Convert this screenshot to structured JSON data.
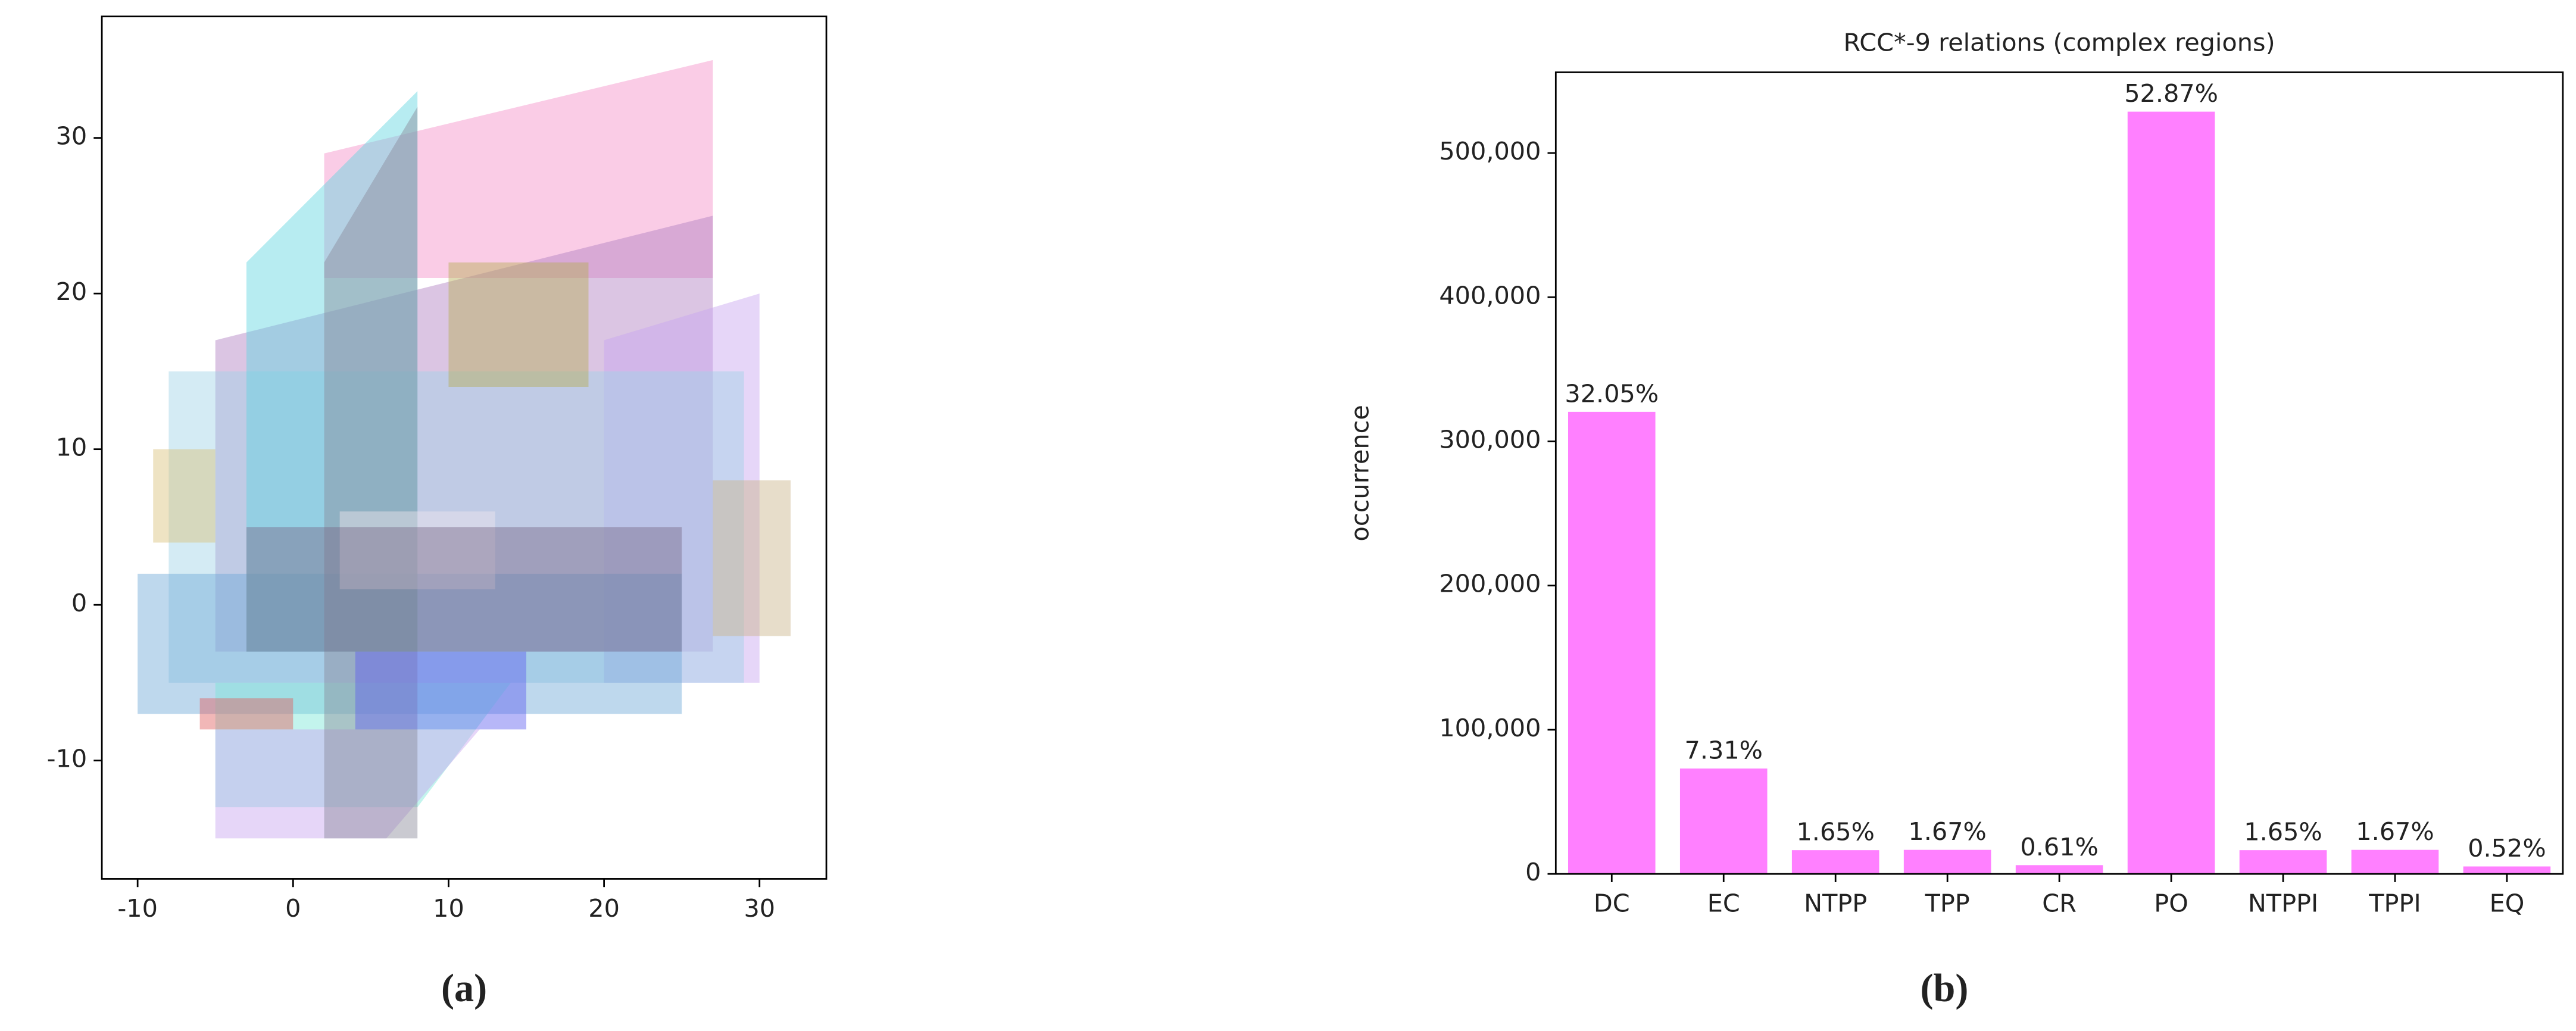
{
  "chart_data": [
    {
      "type": "polygon",
      "caption": "(a)",
      "xlim": [
        -12.3,
        34.3
      ],
      "ylim": [
        -17.6,
        37.8
      ],
      "xticks": [
        -10,
        0,
        10,
        20,
        30
      ],
      "yticks": [
        -10,
        0,
        10,
        20,
        30
      ],
      "polygons": [
        {
          "color": "#f48fc8",
          "x": [
            2,
            27,
            27,
            2
          ],
          "y": [
            29,
            35,
            21,
            21
          ]
        },
        {
          "color": "#b07fc0",
          "x": [
            -5,
            27,
            27,
            -5
          ],
          "y": [
            17,
            25,
            -3,
            -3
          ]
        },
        {
          "color": "#c7a5f0",
          "x": [
            20,
            30,
            30,
            20
          ],
          "y": [
            17,
            20,
            -5,
            -5
          ]
        },
        {
          "color": "#9fd3e6",
          "x": [
            -8,
            29,
            29,
            -8
          ],
          "y": [
            15,
            15,
            -5,
            -5
          ]
        },
        {
          "color": "#6fa8d8",
          "x": [
            -10,
            25,
            25,
            -10
          ],
          "y": [
            2,
            2,
            -7,
            -7
          ]
        },
        {
          "color": "#d9c27a",
          "x": [
            -9,
            -5,
            -5,
            -9
          ],
          "y": [
            10,
            10,
            4,
            4
          ]
        },
        {
          "color": "#c9b48a",
          "x": [
            27,
            32,
            32,
            27
          ],
          "y": [
            8,
            8,
            -2,
            -2
          ]
        },
        {
          "color": "#79e6d8",
          "x": [
            -5,
            14,
            8,
            -5
          ],
          "y": [
            -5,
            -5,
            -13,
            -13
          ]
        },
        {
          "color": "#c7a5f0",
          "x": [
            -5,
            12,
            6,
            -5
          ],
          "y": [
            -8,
            -8,
            -15,
            -15
          ]
        },
        {
          "color": "#5fd5e0",
          "x": [
            -3,
            8,
            8,
            -3
          ],
          "y": [
            22,
            33,
            -3,
            -3
          ]
        },
        {
          "color": "#8a8a9a",
          "x": [
            2,
            8,
            8,
            2
          ],
          "y": [
            22,
            32,
            -15,
            -15
          ]
        },
        {
          "color": "#f0e6ee",
          "x": [
            3,
            13,
            13,
            3
          ],
          "y": [
            6,
            6,
            1,
            1
          ]
        },
        {
          "color": "#7a6a8a",
          "x": [
            -3,
            25,
            25,
            -3
          ],
          "y": [
            5,
            5,
            -3,
            -3
          ]
        },
        {
          "color": "#b6ae55",
          "x": [
            10,
            19,
            19,
            10
          ],
          "y": [
            22,
            22,
            14,
            14
          ]
        },
        {
          "color": "#6060f0",
          "x": [
            4,
            15,
            15,
            4
          ],
          "y": [
            -3,
            -3,
            -8,
            -8
          ]
        },
        {
          "color": "#e06060",
          "x": [
            -6,
            0,
            0,
            -6
          ],
          "y": [
            -6,
            -6,
            -8,
            -8
          ]
        }
      ]
    },
    {
      "type": "bar",
      "title": "RCC*-9 relations (complex regions)",
      "caption": "(b)",
      "ylabel": "occurrence",
      "color": "#ff80ff",
      "categories": [
        "DC",
        "EC",
        "NTPP",
        "TPP",
        "CR",
        "PO",
        "NTPPI",
        "TPPI",
        "EQ"
      ],
      "values": [
        320500,
        73100,
        16500,
        16700,
        6100,
        528700,
        16500,
        16700,
        5200
      ],
      "value_labels": [
        "32.05%",
        "7.31%",
        "1.65%",
        "1.67%",
        "0.61%",
        "52.87%",
        "1.65%",
        "1.67%",
        "0.52%"
      ],
      "ylim": [
        0,
        556000
      ],
      "yticks": [
        0,
        {
          "value": 100000,
          "label": "100,000"
        },
        {
          "value": 200000,
          "label": "200,000"
        },
        {
          "value": 300000,
          "label": "300,000"
        },
        {
          "value": 400000,
          "label": "400,000"
        },
        {
          "value": 500000,
          "label": "500,000"
        }
      ]
    }
  ]
}
